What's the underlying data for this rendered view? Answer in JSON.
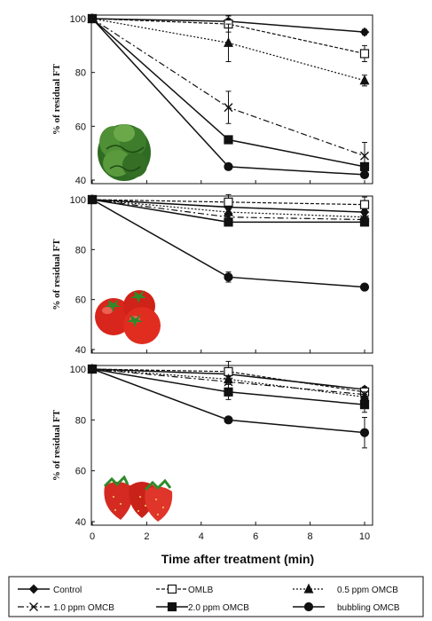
{
  "chart_data": [
    {
      "type": "line",
      "subject": "lettuce",
      "ylabel": "% of residual FT",
      "ylim": [
        40,
        100
      ],
      "yticks": [
        40,
        60,
        80,
        100
      ],
      "xlim": [
        0,
        10
      ],
      "xticks": [
        0,
        2,
        4,
        6,
        8,
        10
      ],
      "x": [
        0,
        5,
        10
      ],
      "series": [
        {
          "name": "Control",
          "values": [
            100,
            99,
            95
          ],
          "error": [
            0,
            1,
            1
          ]
        },
        {
          "name": "OMLB",
          "values": [
            100,
            98,
            87
          ],
          "error": [
            0,
            3,
            3
          ]
        },
        {
          "name": "0.5 ppm OMCB",
          "values": [
            100,
            91,
            77
          ],
          "error": [
            0,
            7,
            2
          ]
        },
        {
          "name": "1.0 ppm OMCB",
          "values": [
            100,
            67,
            49
          ],
          "error": [
            0,
            6,
            5
          ]
        },
        {
          "name": "2.0 ppm OMCB",
          "values": [
            100,
            55,
            45
          ],
          "error": [
            0,
            1,
            1
          ]
        },
        {
          "name": "bubbling OMCB",
          "values": [
            100,
            45,
            42
          ],
          "error": [
            0,
            1,
            1
          ]
        }
      ]
    },
    {
      "type": "line",
      "subject": "tomato",
      "ylabel": "% of residual FT",
      "ylim": [
        40,
        100
      ],
      "yticks": [
        40,
        60,
        80,
        100
      ],
      "xlim": [
        0,
        10
      ],
      "xticks": [
        0,
        2,
        4,
        6,
        8,
        10
      ],
      "x": [
        0,
        5,
        10
      ],
      "series": [
        {
          "name": "Control",
          "values": [
            100,
            97,
            95
          ],
          "error": [
            0,
            1,
            1
          ]
        },
        {
          "name": "OMLB",
          "values": [
            100,
            99,
            98
          ],
          "error": [
            0,
            3,
            3
          ]
        },
        {
          "name": "0.5 ppm OMCB",
          "values": [
            100,
            95,
            93
          ],
          "error": [
            0,
            1,
            1
          ]
        },
        {
          "name": "1.0 ppm OMCB",
          "values": [
            100,
            93,
            92
          ],
          "error": [
            0,
            1,
            1
          ]
        },
        {
          "name": "2.0 ppm OMCB",
          "values": [
            100,
            91,
            91
          ],
          "error": [
            0,
            1,
            1
          ]
        },
        {
          "name": "bubbling OMCB",
          "values": [
            100,
            69,
            65
          ],
          "error": [
            0,
            2,
            1
          ]
        }
      ]
    },
    {
      "type": "line",
      "subject": "strawberry",
      "ylabel": "% of residual FT",
      "xlabel": "Time after treatment (min)",
      "ylim": [
        40,
        100
      ],
      "yticks": [
        40,
        60,
        80,
        100
      ],
      "xlim": [
        0,
        10
      ],
      "xticks": [
        0,
        2,
        4,
        6,
        8,
        10
      ],
      "x": [
        0,
        5,
        10
      ],
      "series": [
        {
          "name": "Control",
          "values": [
            100,
            98,
            92
          ],
          "error": [
            0,
            1,
            1
          ]
        },
        {
          "name": "OMLB",
          "values": [
            100,
            99,
            91
          ],
          "error": [
            0,
            4,
            2
          ]
        },
        {
          "name": "0.5 ppm OMCB",
          "values": [
            100,
            96,
            89
          ],
          "error": [
            0,
            1,
            1
          ]
        },
        {
          "name": "1.0 ppm OMCB",
          "values": [
            100,
            95,
            90
          ],
          "error": [
            0,
            1,
            1
          ]
        },
        {
          "name": "2.0 ppm OMCB",
          "values": [
            100,
            91,
            86
          ],
          "error": [
            0,
            3,
            3
          ]
        },
        {
          "name": "bubbling OMCB",
          "values": [
            100,
            80,
            75
          ],
          "error": [
            0,
            1,
            6
          ]
        }
      ]
    }
  ],
  "legend": {
    "placement": "bottom",
    "items": [
      {
        "label": "Control",
        "style": "solid",
        "marker": "diamond",
        "fill": "#111111"
      },
      {
        "label": "OMLB",
        "style": "dashed",
        "marker": "square",
        "fill": "#ffffff"
      },
      {
        "label": "0.5 ppm OMCB",
        "style": "dotted",
        "marker": "triangle",
        "fill": "#111111"
      },
      {
        "label": "1.0 ppm OMCB",
        "style": "dashdot",
        "marker": "x",
        "fill": "#111111"
      },
      {
        "label": "2.0 ppm OMCB",
        "style": "solid",
        "marker": "square",
        "fill": "#111111"
      },
      {
        "label": "bubbling OMCB",
        "style": "solid",
        "marker": "circle",
        "fill": "#111111"
      }
    ]
  },
  "colors": {
    "line": "#111111",
    "axis": "#111111",
    "lettuce": "#3f7a2a",
    "tomato": "#d8261c",
    "strawberry": "#d42a22",
    "leaf": "#2f8a2a"
  }
}
